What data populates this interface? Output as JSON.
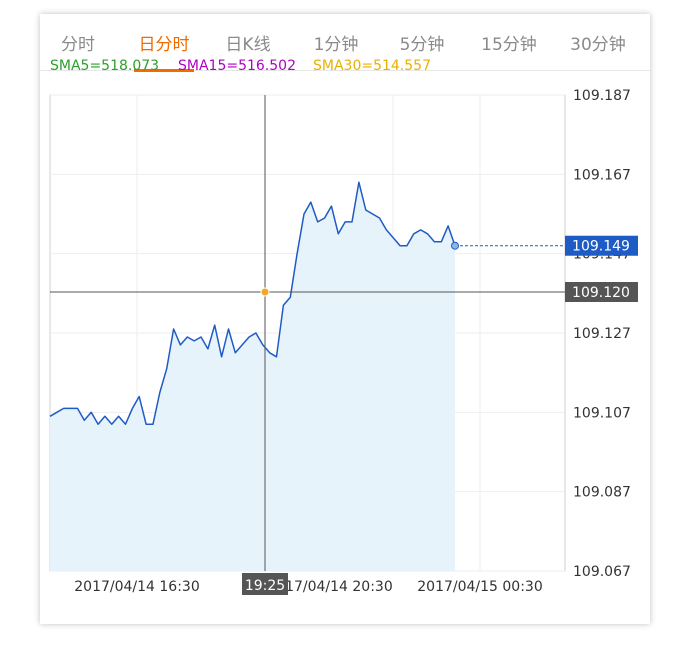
{
  "tabs": [
    {
      "label": "分时",
      "active": false
    },
    {
      "label": "日分时",
      "active": true
    },
    {
      "label": "日K线",
      "active": false
    },
    {
      "label": "1分钟",
      "active": false
    },
    {
      "label": "5分钟",
      "active": false
    },
    {
      "label": "15分钟",
      "active": false
    },
    {
      "label": "30分钟",
      "active": false
    }
  ],
  "indicators": {
    "sma5": {
      "label": "SMA5=518.073",
      "color": "#2ca02c"
    },
    "sma15": {
      "label": "SMA15=516.502",
      "color": "#b000c8"
    },
    "sma30": {
      "label": "SMA30=514.557",
      "color": "#e8b100"
    }
  },
  "colors": {
    "line": "#1f5bc4",
    "area": "#e6f3fb",
    "accent": "#f26b00",
    "crosshair": "#555555",
    "price_badge": "#1f5bc4",
    "crosshair_badge": "#555555"
  },
  "chart_data": {
    "type": "area",
    "y_ticks": [
      "109.187",
      "109.167",
      "109.147",
      "109.127",
      "109.107",
      "109.087",
      "109.067"
    ],
    "x_ticks": [
      "2017/04/14 16:30",
      "2017/04/14 20:30",
      "2017/04/15 00:30"
    ],
    "current_price": "109.149",
    "crosshair": {
      "time": "19:25",
      "value": "109.120"
    },
    "grid": true,
    "values": [
      109.106,
      109.107,
      109.108,
      109.108,
      109.108,
      109.105,
      109.107,
      109.104,
      109.106,
      109.104,
      109.106,
      109.104,
      109.108,
      109.111,
      109.104,
      109.104,
      109.112,
      109.118,
      109.128,
      109.124,
      109.126,
      109.125,
      109.126,
      109.123,
      109.129,
      109.121,
      109.128,
      109.122,
      109.124,
      109.126,
      109.127,
      109.124,
      109.122,
      109.121,
      109.134,
      109.136,
      109.147,
      109.157,
      109.16,
      109.155,
      109.156,
      109.159,
      109.152,
      109.155,
      109.155,
      109.165,
      109.158,
      109.157,
      109.156,
      109.153,
      109.151,
      109.149,
      109.149,
      109.152,
      109.153,
      109.152,
      109.15,
      109.15,
      109.154,
      109.149
    ]
  }
}
